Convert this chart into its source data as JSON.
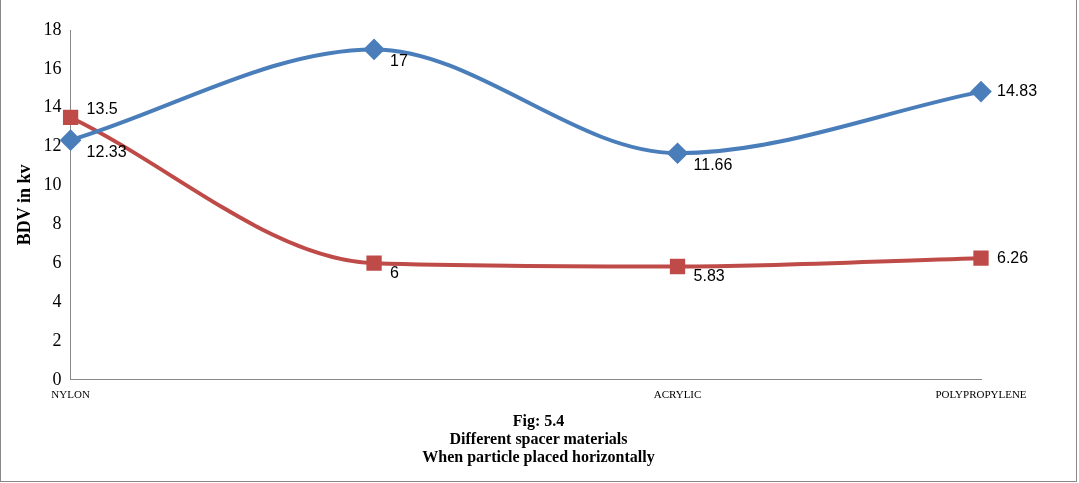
{
  "chart_data": {
    "type": "line",
    "title": "Fig: 5.4",
    "subtitle": "Different spacer materials",
    "annotations": [
      "When particle placed horizontally"
    ],
    "ylabel": "BDV in kv",
    "categories": [
      "NYLON",
      null,
      "ACRYLIC",
      "POLYPROPYLENE"
    ],
    "series": [
      {
        "color": "#4a7ebb",
        "marker": "diamond",
        "values": [
          12.33,
          17,
          11.66,
          14.83
        ]
      },
      {
        "color": "#be4b48",
        "marker": "square",
        "values": [
          13.5,
          6,
          5.83,
          6.26
        ]
      }
    ],
    "ylim": [
      0,
      18
    ],
    "yticks": [
      0,
      2,
      4,
      6,
      8,
      10,
      12,
      14,
      16,
      18
    ],
    "grid": false,
    "legend": false,
    "data_labels": true
  }
}
